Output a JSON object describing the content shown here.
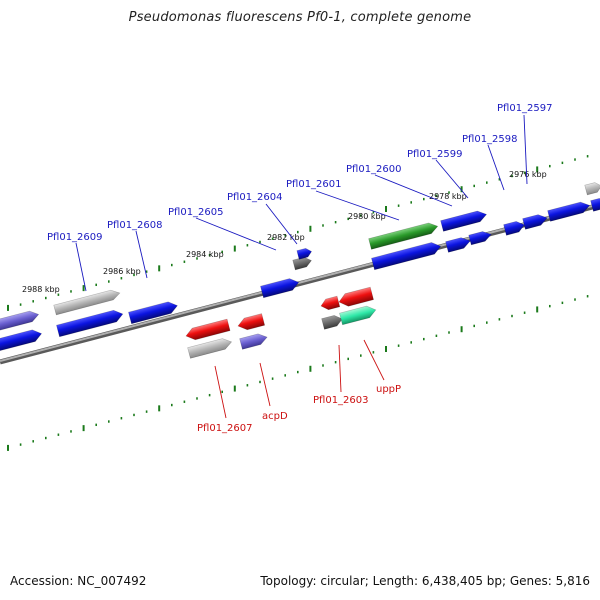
{
  "title": "Pseudomonas fluorescens Pf0-1, complete genome",
  "footer": {
    "accession": "Accession: NC_007492",
    "summary": "Topology: circular; Length: 6,438,405 bp; Genes: 5,816"
  },
  "colors": {
    "backbone": "#8a8a8a",
    "blue": "#0b14e0",
    "grey": "#b5b5b5",
    "purple": "#6a5fd0",
    "red": "#ee1010",
    "green": "#2a9a2a",
    "teal": "#2ee8a8",
    "darkgrey": "#6a6a6a",
    "tick": "#1b7a1b",
    "label_top": "#1a1ac0",
    "label_bottom": "#cc1010"
  },
  "kbp_labels": [
    "2988 kbp",
    "2986 kbp",
    "2984 kbp",
    "2982 kbp",
    "2980 kbp",
    "2978 kbp",
    "2976 kbp"
  ],
  "genes_top": [
    "Pfl01_2609",
    "Pfl01_2608",
    "Pfl01_2605",
    "Pfl01_2604",
    "Pfl01_2601",
    "Pfl01_2600",
    "Pfl01_2599",
    "Pfl01_2598",
    "Pfl01_2597"
  ],
  "genes_bottom": [
    "Pfl01_2607",
    "acpD",
    "Pfl01_2603",
    "uppP"
  ]
}
